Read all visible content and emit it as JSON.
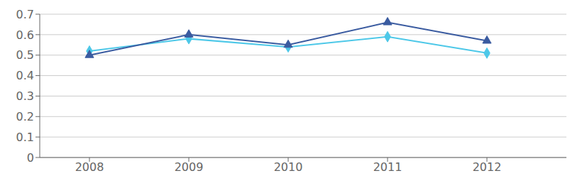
{
  "chart_data": {
    "type": "line",
    "x": [
      2008,
      2009,
      2010,
      2011,
      2012
    ],
    "xlim": [
      2007.5,
      2012.8
    ],
    "xticks": [
      2008,
      2009,
      2010,
      2011,
      2012
    ],
    "ylim": [
      0,
      0.7
    ],
    "yticks": [
      0,
      0.1,
      0.2,
      0.3,
      0.4,
      0.5,
      0.6,
      0.7
    ],
    "grid": true,
    "series": [
      {
        "color": "#3A5BA0",
        "marker": "triangle",
        "values": [
          0.5,
          0.6,
          0.55,
          0.66,
          0.57
        ]
      },
      {
        "color": "#4DC8E8",
        "marker": "diamond",
        "values": [
          0.52,
          0.58,
          0.54,
          0.59,
          0.51
        ]
      }
    ]
  }
}
